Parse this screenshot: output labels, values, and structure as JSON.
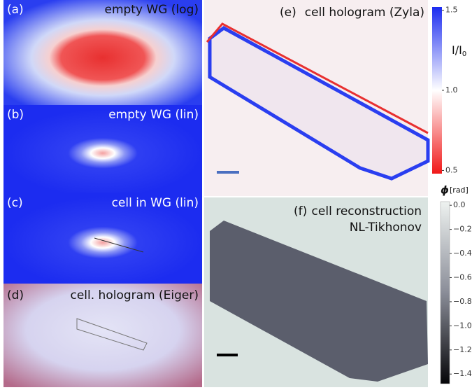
{
  "panels": [
    {
      "tag": "(a)",
      "title": "empty WG (log)"
    },
    {
      "tag": "(b)",
      "title": "empty WG (lin)"
    },
    {
      "tag": "(c)",
      "title": "cell in WG (lin)"
    },
    {
      "tag": "(d)",
      "title": "cell. hologram (Eiger)"
    },
    {
      "tag": "(e)",
      "title": "cell hologram (Zyla)"
    },
    {
      "tag": "(f)",
      "title": "cell reconstruction",
      "subtitle": "NL-Tikhonov"
    }
  ],
  "colorbars": [
    {
      "label": "I/I",
      "label_sub": "0",
      "clim": [
        0.48,
        1.52
      ],
      "ticks": [
        {
          "value": 1.5,
          "label": "1.5"
        },
        {
          "value": 1.0,
          "label": "1.0"
        },
        {
          "value": 0.5,
          "label": "0.5"
        }
      ]
    },
    {
      "label_symbol": "ϕ",
      "label": "[rad]",
      "clim": [
        -1.48,
        0.03
      ],
      "ticks": [
        {
          "value": 0,
          "label": "0.0"
        },
        {
          "value": -0.2,
          "label": "−0.2"
        },
        {
          "value": -0.4,
          "label": "−0.4"
        },
        {
          "value": -0.6,
          "label": "−0.6"
        },
        {
          "value": -0.8,
          "label": "−0.8"
        },
        {
          "value": -1.0,
          "label": "−1.0"
        },
        {
          "value": -1.2,
          "label": "−1.2"
        },
        {
          "value": -1.4,
          "label": "−1.4"
        }
      ]
    }
  ]
}
